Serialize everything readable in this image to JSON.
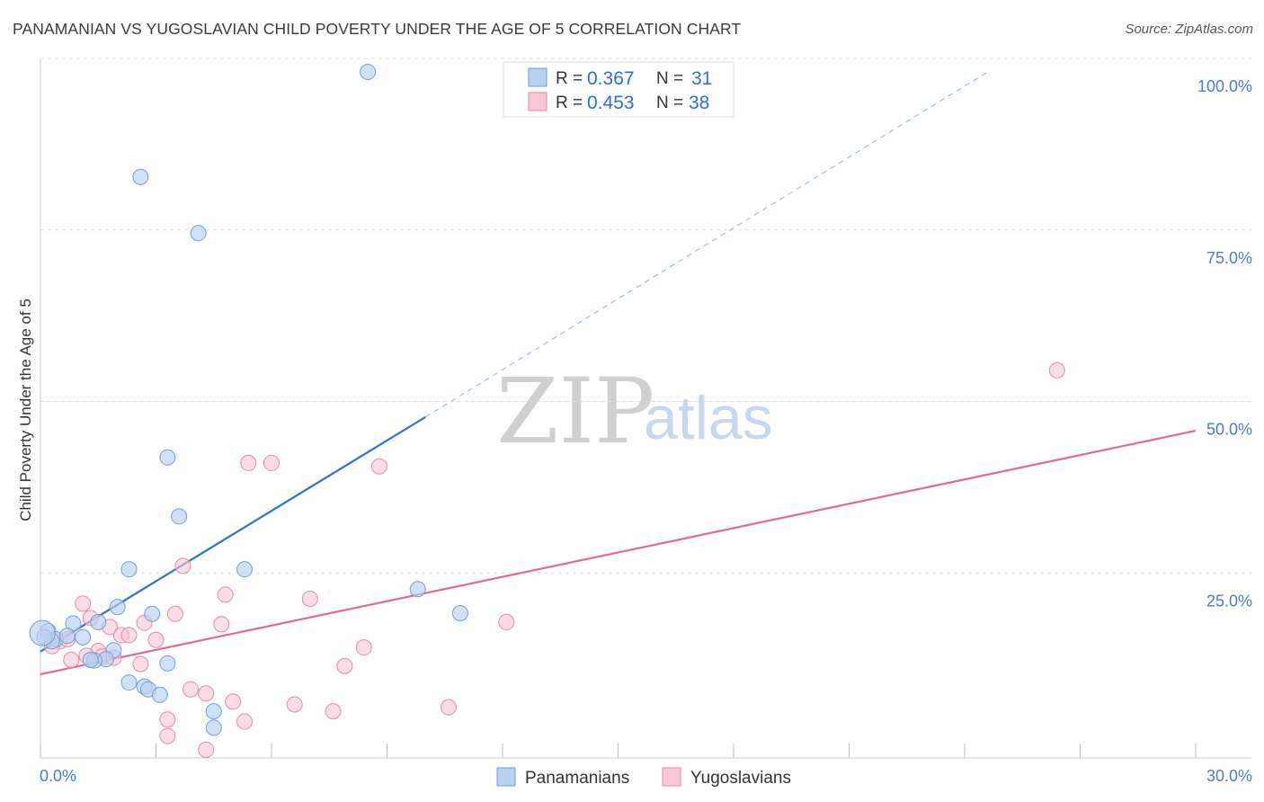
{
  "header": {
    "title": "PANAMANIAN VS YUGOSLAVIAN CHILD POVERTY UNDER THE AGE OF 5 CORRELATION CHART",
    "source": "Source: ZipAtlas.com"
  },
  "watermark": {
    "zip": "ZIP",
    "atlas": "atlas"
  },
  "legend": {
    "rows": [
      {
        "r_label": "R =",
        "r_value": "0.367",
        "n_label": "N =",
        "n_value": "31"
      },
      {
        "r_label": "R =",
        "r_value": "0.453",
        "n_label": "N =",
        "n_value": "38"
      }
    ]
  },
  "bottom_legend": {
    "series1": "Panamanians",
    "series2": "Yugoslavians"
  },
  "colors": {
    "blue_fill": "#b8d1f0",
    "blue_stroke": "#6f9fdc",
    "blue_line": "#2f74d0",
    "pink_fill": "#f8c6d5",
    "pink_stroke": "#e98aa8",
    "pink_line": "#e06b95",
    "grid": "#dddddd",
    "axis_label": "#4a7cc9"
  },
  "chart_data": {
    "type": "scatter",
    "title": "PANAMANIAN VS YUGOSLAVIAN CHILD POVERTY UNDER THE AGE OF 5 CORRELATION CHART",
    "xlabel": "",
    "ylabel": "Child Poverty Under the Age of 5",
    "xlim": [
      0,
      30
    ],
    "ylim": [
      0,
      100
    ],
    "x_tick_labels": [
      "0.0%",
      "30.0%"
    ],
    "y_tick_labels": [
      "100.0%",
      "75.0%",
      "50.0%",
      "25.0%"
    ],
    "y_ticks": [
      100,
      75,
      50,
      25
    ],
    "grid": true,
    "series": [
      {
        "name": "Panamanians",
        "R": 0.367,
        "N": 31,
        "points": [
          [
            8.5,
            100
          ],
          [
            2.6,
            84.7
          ],
          [
            4.1,
            76.5
          ],
          [
            3.3,
            43.8
          ],
          [
            3.6,
            35.2
          ],
          [
            2.3,
            27.5
          ],
          [
            5.3,
            27.5
          ],
          [
            9.8,
            24.6
          ],
          [
            10.9,
            21.1
          ],
          [
            2.0,
            22.0
          ],
          [
            2.9,
            21.0
          ],
          [
            0.85,
            19.6
          ],
          [
            1.5,
            19.8
          ],
          [
            0.2,
            18.5
          ],
          [
            0.4,
            17.3
          ],
          [
            0.7,
            17.8
          ],
          [
            1.1,
            17.6
          ],
          [
            0.3,
            17.0
          ],
          [
            1.9,
            15.7
          ],
          [
            1.7,
            14.4
          ],
          [
            1.4,
            14.2
          ],
          [
            1.3,
            14.3
          ],
          [
            3.3,
            13.8
          ],
          [
            2.3,
            11.0
          ],
          [
            2.7,
            10.4
          ],
          [
            2.8,
            10.0
          ],
          [
            3.1,
            9.2
          ],
          [
            4.5,
            6.8
          ],
          [
            4.5,
            4.4
          ],
          [
            0.1,
            17.6
          ],
          [
            0.05,
            18.2
          ]
        ],
        "trend": {
          "x0": 0,
          "y0": 15.5,
          "x1": 10,
          "y1": 49.7,
          "dashed_to": [
            24.6,
            100
          ]
        }
      },
      {
        "name": "Yugoslavians",
        "R": 0.453,
        "N": 38,
        "points": [
          [
            26.4,
            56.5
          ],
          [
            5.4,
            43.0
          ],
          [
            6.0,
            43.0
          ],
          [
            8.8,
            42.5
          ],
          [
            3.7,
            28.0
          ],
          [
            4.8,
            23.8
          ],
          [
            7.0,
            23.2
          ],
          [
            1.1,
            22.5
          ],
          [
            3.5,
            21.0
          ],
          [
            2.7,
            19.7
          ],
          [
            12.1,
            19.8
          ],
          [
            4.7,
            19.5
          ],
          [
            1.3,
            20.4
          ],
          [
            1.8,
            19.1
          ],
          [
            2.1,
            17.9
          ],
          [
            2.3,
            17.9
          ],
          [
            3.0,
            17.2
          ],
          [
            0.5,
            17.0
          ],
          [
            0.7,
            17.3
          ],
          [
            0.3,
            16.3
          ],
          [
            8.4,
            16.1
          ],
          [
            1.5,
            15.6
          ],
          [
            1.6,
            14.8
          ],
          [
            1.2,
            14.9
          ],
          [
            1.9,
            14.6
          ],
          [
            0.8,
            14.3
          ],
          [
            2.6,
            13.7
          ],
          [
            7.9,
            13.4
          ],
          [
            3.9,
            10.0
          ],
          [
            4.3,
            9.4
          ],
          [
            5.0,
            8.2
          ],
          [
            6.6,
            7.8
          ],
          [
            10.6,
            7.4
          ],
          [
            7.6,
            6.8
          ],
          [
            3.3,
            5.6
          ],
          [
            5.3,
            5.3
          ],
          [
            3.3,
            3.2
          ],
          [
            4.3,
            1.2
          ]
        ],
        "trend": {
          "x0": 0,
          "y0": 12.2,
          "x1": 30,
          "y1": 47.7
        }
      }
    ]
  }
}
